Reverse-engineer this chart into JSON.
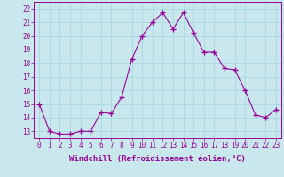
{
  "x": [
    0,
    1,
    2,
    3,
    4,
    5,
    6,
    7,
    8,
    9,
    10,
    11,
    12,
    13,
    14,
    15,
    16,
    17,
    18,
    19,
    20,
    21,
    22,
    23
  ],
  "y": [
    15,
    13,
    12.8,
    12.8,
    13,
    13,
    14.4,
    14.3,
    15.5,
    18.3,
    20,
    21,
    21.7,
    20.5,
    21.7,
    20.2,
    18.8,
    18.8,
    17.6,
    17.5,
    16,
    14.2,
    14,
    14.6
  ],
  "line_color": "#990099",
  "marker": "+",
  "marker_size": 4,
  "bg_color": "#c8e8ee",
  "grid_color": "#b0d8e0",
  "xlabel": "Windchill (Refroidissement éolien,°C)",
  "ylim": [
    12.5,
    22.5
  ],
  "yticks": [
    13,
    14,
    15,
    16,
    17,
    18,
    19,
    20,
    21,
    22
  ],
  "xticks": [
    0,
    1,
    2,
    3,
    4,
    5,
    6,
    7,
    8,
    9,
    10,
    11,
    12,
    13,
    14,
    15,
    16,
    17,
    18,
    19,
    20,
    21,
    22,
    23
  ],
  "tick_fontsize": 5.5,
  "xlabel_fontsize": 6.5,
  "line_width": 0.8,
  "xlim": [
    -0.5,
    23.5
  ]
}
